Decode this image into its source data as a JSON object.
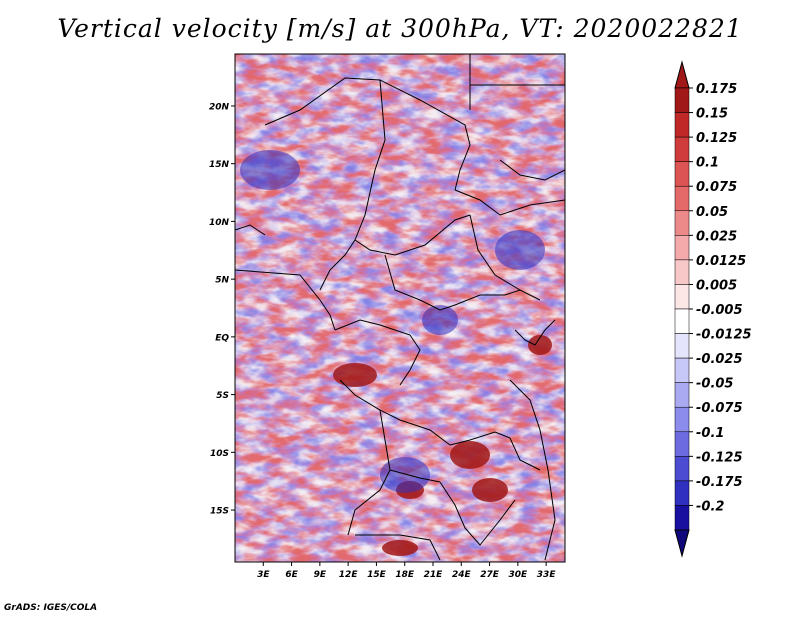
{
  "title": "Vertical velocity [m/s] at 300hPa, VT: 2020022821",
  "credit": "GrADS: IGES/COLA",
  "map": {
    "lat_labels": [
      "20N",
      "15N",
      "10N",
      "5N",
      "EQ",
      "5S",
      "10S",
      "15S"
    ],
    "lat_values": [
      20,
      15,
      10,
      5,
      0,
      -5,
      -10,
      -15
    ],
    "lon_labels": [
      "3E",
      "6E",
      "9E",
      "12E",
      "15E",
      "18E",
      "21E",
      "24E",
      "27E",
      "30E",
      "33E"
    ],
    "lon_values": [
      3,
      6,
      9,
      12,
      15,
      18,
      21,
      24,
      27,
      30,
      33
    ],
    "lat_range": [
      -19.5,
      24.5
    ],
    "lon_range": [
      0,
      35
    ]
  },
  "colorbar": {
    "labels": [
      "0.175",
      "0.15",
      "0.125",
      "0.1",
      "0.075",
      "0.05",
      "0.025",
      "0.0125",
      "0.005",
      "-0.005",
      "-0.0125",
      "-0.025",
      "-0.05",
      "-0.075",
      "-0.1",
      "-0.125",
      "-0.175",
      "-0.2"
    ],
    "colors": [
      "#a01818",
      "#c02828",
      "#d03c3c",
      "#dc5454",
      "#e46a6a",
      "#ec8a8a",
      "#f4aaaa",
      "#f8c8c8",
      "#fce6e6",
      "#ffffff",
      "#e4e4fc",
      "#c8c8f8",
      "#aaaaf2",
      "#8c8cec",
      "#6c6ce0",
      "#4c4cd2",
      "#3030c0",
      "#1a10a0",
      "#10087a"
    ],
    "top_arrow_color": "#a01818",
    "bottom_arrow_color": "#10087a"
  }
}
